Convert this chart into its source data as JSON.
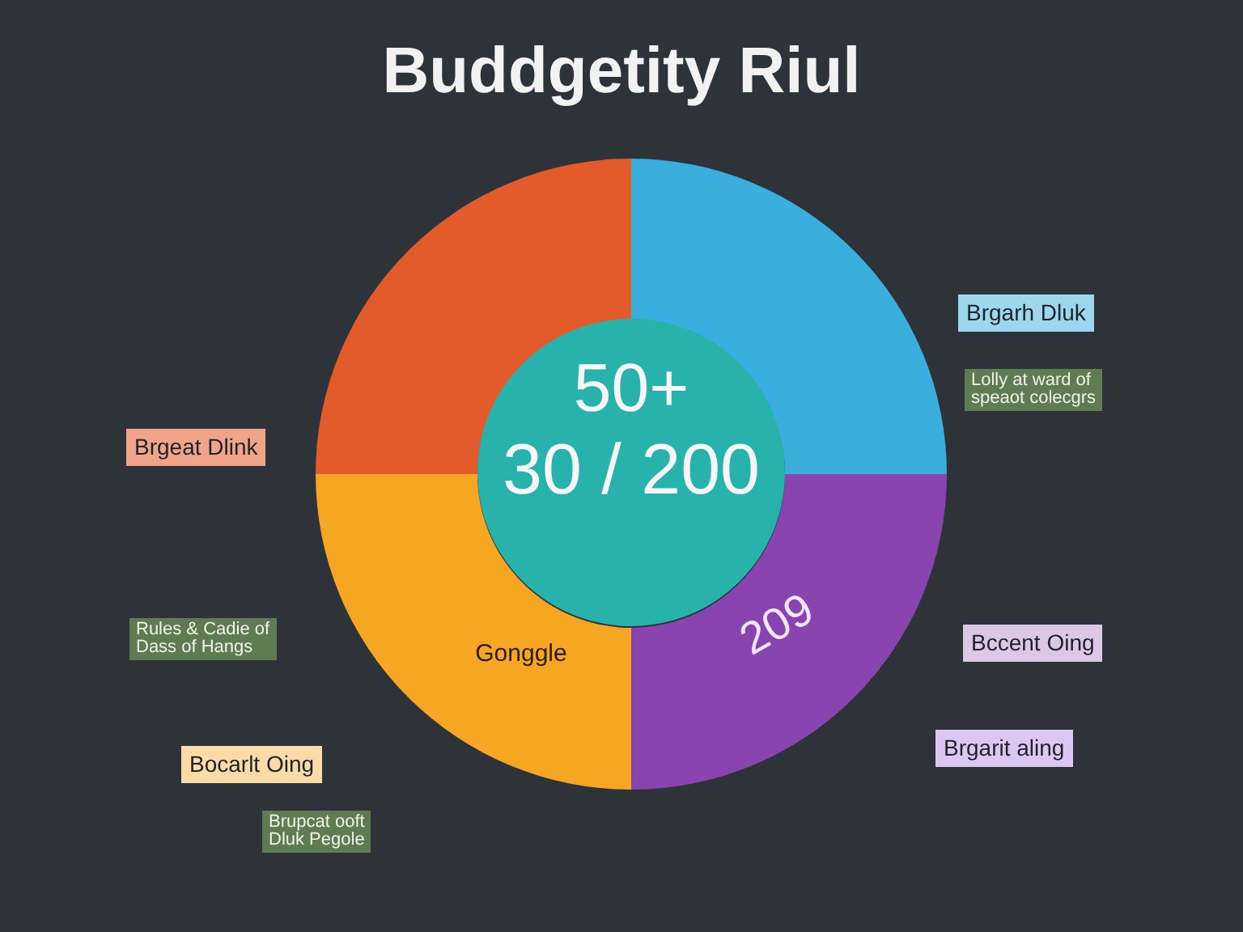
{
  "chart_data": {
    "type": "donut",
    "title": "Buddgetity Riul",
    "categories": [
      "Brgarh Dluk",
      "Bccent Oing",
      "Bocarlt Oing",
      "Brgeat Dlink"
    ],
    "values": [
      25,
      25,
      25,
      25
    ],
    "colors": [
      "#3aaedc",
      "#8a44b0",
      "#f6a623",
      "#e35b2b"
    ],
    "annotations": [
      "50+",
      "30 / 200",
      "209",
      "Gonggle",
      "Brgarit aling",
      "Lolly at ward of\nspeaot colecgrs",
      "Rules & Cadie of\nDass of Hangs",
      "Brupcat ooft\nDluk Pegole"
    ]
  }
}
